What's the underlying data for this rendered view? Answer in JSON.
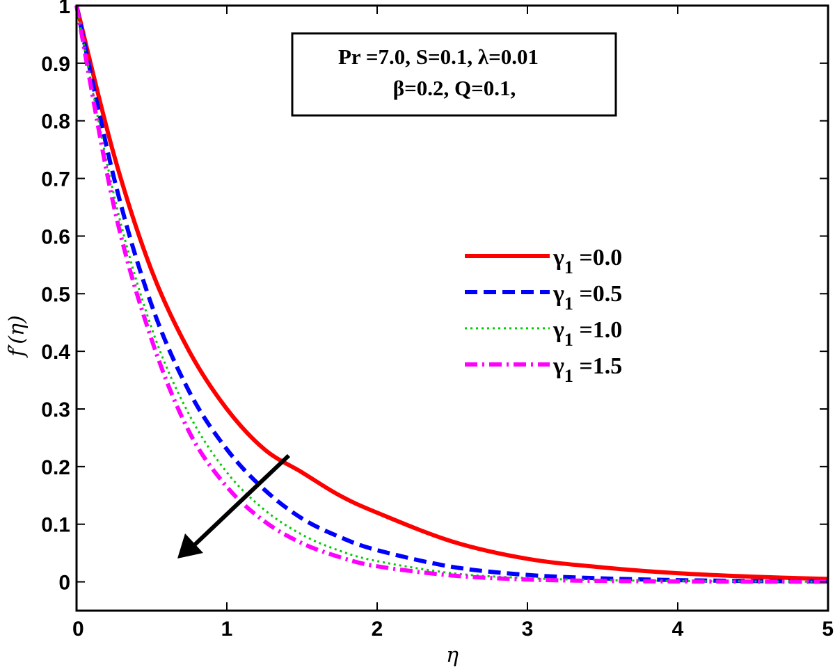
{
  "chart_data": {
    "type": "line",
    "xlabel": "η",
    "ylabel": "f′(η)",
    "xlim": [
      0,
      5
    ],
    "ylim": [
      -0.05,
      1
    ],
    "x_ticks": [
      "0",
      "1",
      "2",
      "3",
      "4",
      "5"
    ],
    "y_ticks": [
      "0",
      "0.1",
      "0.2",
      "0.3",
      "0.4",
      "0.5",
      "0.6",
      "0.7",
      "0.8",
      "0.9",
      "1"
    ],
    "grid": false,
    "legend_position": "right",
    "annotation": {
      "line1": "Pr =7.0, S=0.1, λ=0.01",
      "line2": "β=0.2, Q=0.1,"
    },
    "arrow_direction": "increasing γ1",
    "x": [
      0,
      0.25,
      0.5,
      0.75,
      1.0,
      1.25,
      1.5,
      1.75,
      2.0,
      2.5,
      3.0,
      3.5,
      4.0,
      4.5,
      5.0
    ],
    "series": [
      {
        "name": "γ1 =0.0",
        "legend_symbol": "γ",
        "legend_sub": "1",
        "legend_value": " =0.0",
        "color": "#ff0000",
        "style": "solid",
        "values": [
          1.0,
          0.74,
          0.54,
          0.4,
          0.3,
          0.23,
          0.19,
          0.15,
          0.12,
          0.07,
          0.04,
          0.025,
          0.015,
          0.009,
          0.005
        ]
      },
      {
        "name": "γ1 =0.5",
        "legend_symbol": "γ",
        "legend_sub": "1",
        "legend_value": " =0.5",
        "color": "#0000ff",
        "style": "dashed",
        "values": [
          1.0,
          0.7,
          0.48,
          0.33,
          0.23,
          0.16,
          0.11,
          0.078,
          0.055,
          0.026,
          0.012,
          0.006,
          0.003,
          0.0015,
          0.0008
        ]
      },
      {
        "name": "γ1 =1.0",
        "legend_symbol": "γ",
        "legend_sub": "1",
        "legend_value": " =1.0",
        "color": "#00cc00",
        "style": "dotted",
        "values": [
          1.0,
          0.67,
          0.44,
          0.29,
          0.19,
          0.125,
          0.082,
          0.054,
          0.036,
          0.015,
          0.0065,
          0.003,
          0.0015,
          0.0007,
          0.0003
        ]
      },
      {
        "name": "γ1 =1.5",
        "legend_symbol": "γ",
        "legend_sub": "1",
        "legend_value": " =1.5",
        "color": "#ff00ff",
        "style": "dashdot",
        "values": [
          1.0,
          0.65,
          0.42,
          0.26,
          0.165,
          0.105,
          0.067,
          0.043,
          0.027,
          0.011,
          0.004,
          0.0017,
          0.0007,
          0.0003,
          0.0001
        ]
      }
    ]
  }
}
